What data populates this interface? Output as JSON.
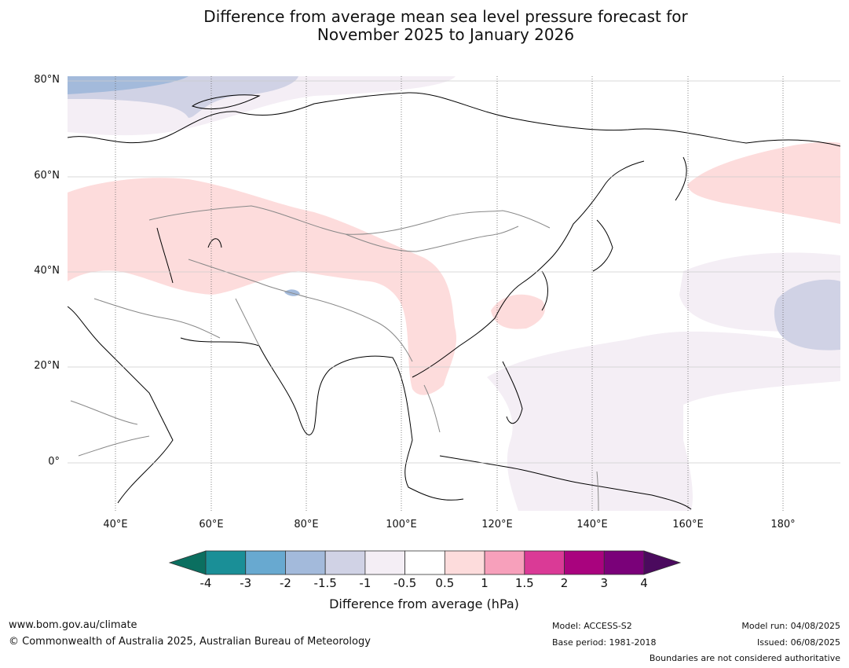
{
  "title": {
    "line1": "Difference from average mean sea level pressure forecast for",
    "line2": "November 2025 to January 2026"
  },
  "map": {
    "region": "Asia and western Pacific",
    "latitude_labels": [
      "80°N",
      "60°N",
      "40°N",
      "20°N",
      "0°"
    ],
    "longitude_labels": [
      "40°E",
      "60°E",
      "80°E",
      "100°E",
      "120°E",
      "140°E",
      "160°E",
      "180°"
    ],
    "anomaly_regions": [
      {
        "category": "0.5 to 1",
        "area": "Central Asia, Tibet and southern China",
        "color": "#fddcdc"
      },
      {
        "category": "0.5 to 1",
        "area": "Kamchatka and North Pacific near 55-65°N",
        "color": "#fddcdc"
      },
      {
        "category": "-1 to -0.5",
        "area": "Western Pacific, Philippine Sea and Maritime Continent",
        "color": "#f4eef5"
      },
      {
        "category": "-1.5 to -1",
        "area": "North Pacific near 30°N 170°E",
        "color": "#d0d2e5"
      },
      {
        "category": "-1.5 to -1",
        "area": "Barents and Kara Seas",
        "color": "#d0d2e5"
      }
    ]
  },
  "colorbar": {
    "title": "Difference from average (hPa)",
    "ticks": [
      "-4",
      "-3",
      "-2",
      "-1.5",
      "-1",
      "-0.5",
      "0.5",
      "1",
      "1.5",
      "2",
      "3",
      "4"
    ],
    "under_color": "#0b6f60",
    "over_color": "#4b0a5e",
    "colors": [
      "#1a8f97",
      "#68a9d0",
      "#a3badb",
      "#d0d2e5",
      "#f4eef5",
      "#ffffff",
      "#fddcdc",
      "#f7a0bb",
      "#da3a96",
      "#a9037e",
      "#7a0179"
    ]
  },
  "footer": {
    "website": "www.bom.gov.au/climate",
    "copyright": "© Commonwealth of Australia 2025, Australian Bureau of Meteorology",
    "model": "Model: ACCESS-S2",
    "base_period": "Base period: 1981-2018",
    "model_run": "Model run: 04/08/2025",
    "issued": "Issued: 06/08/2025",
    "disclaimer": "Boundaries are not considered authoritative"
  }
}
